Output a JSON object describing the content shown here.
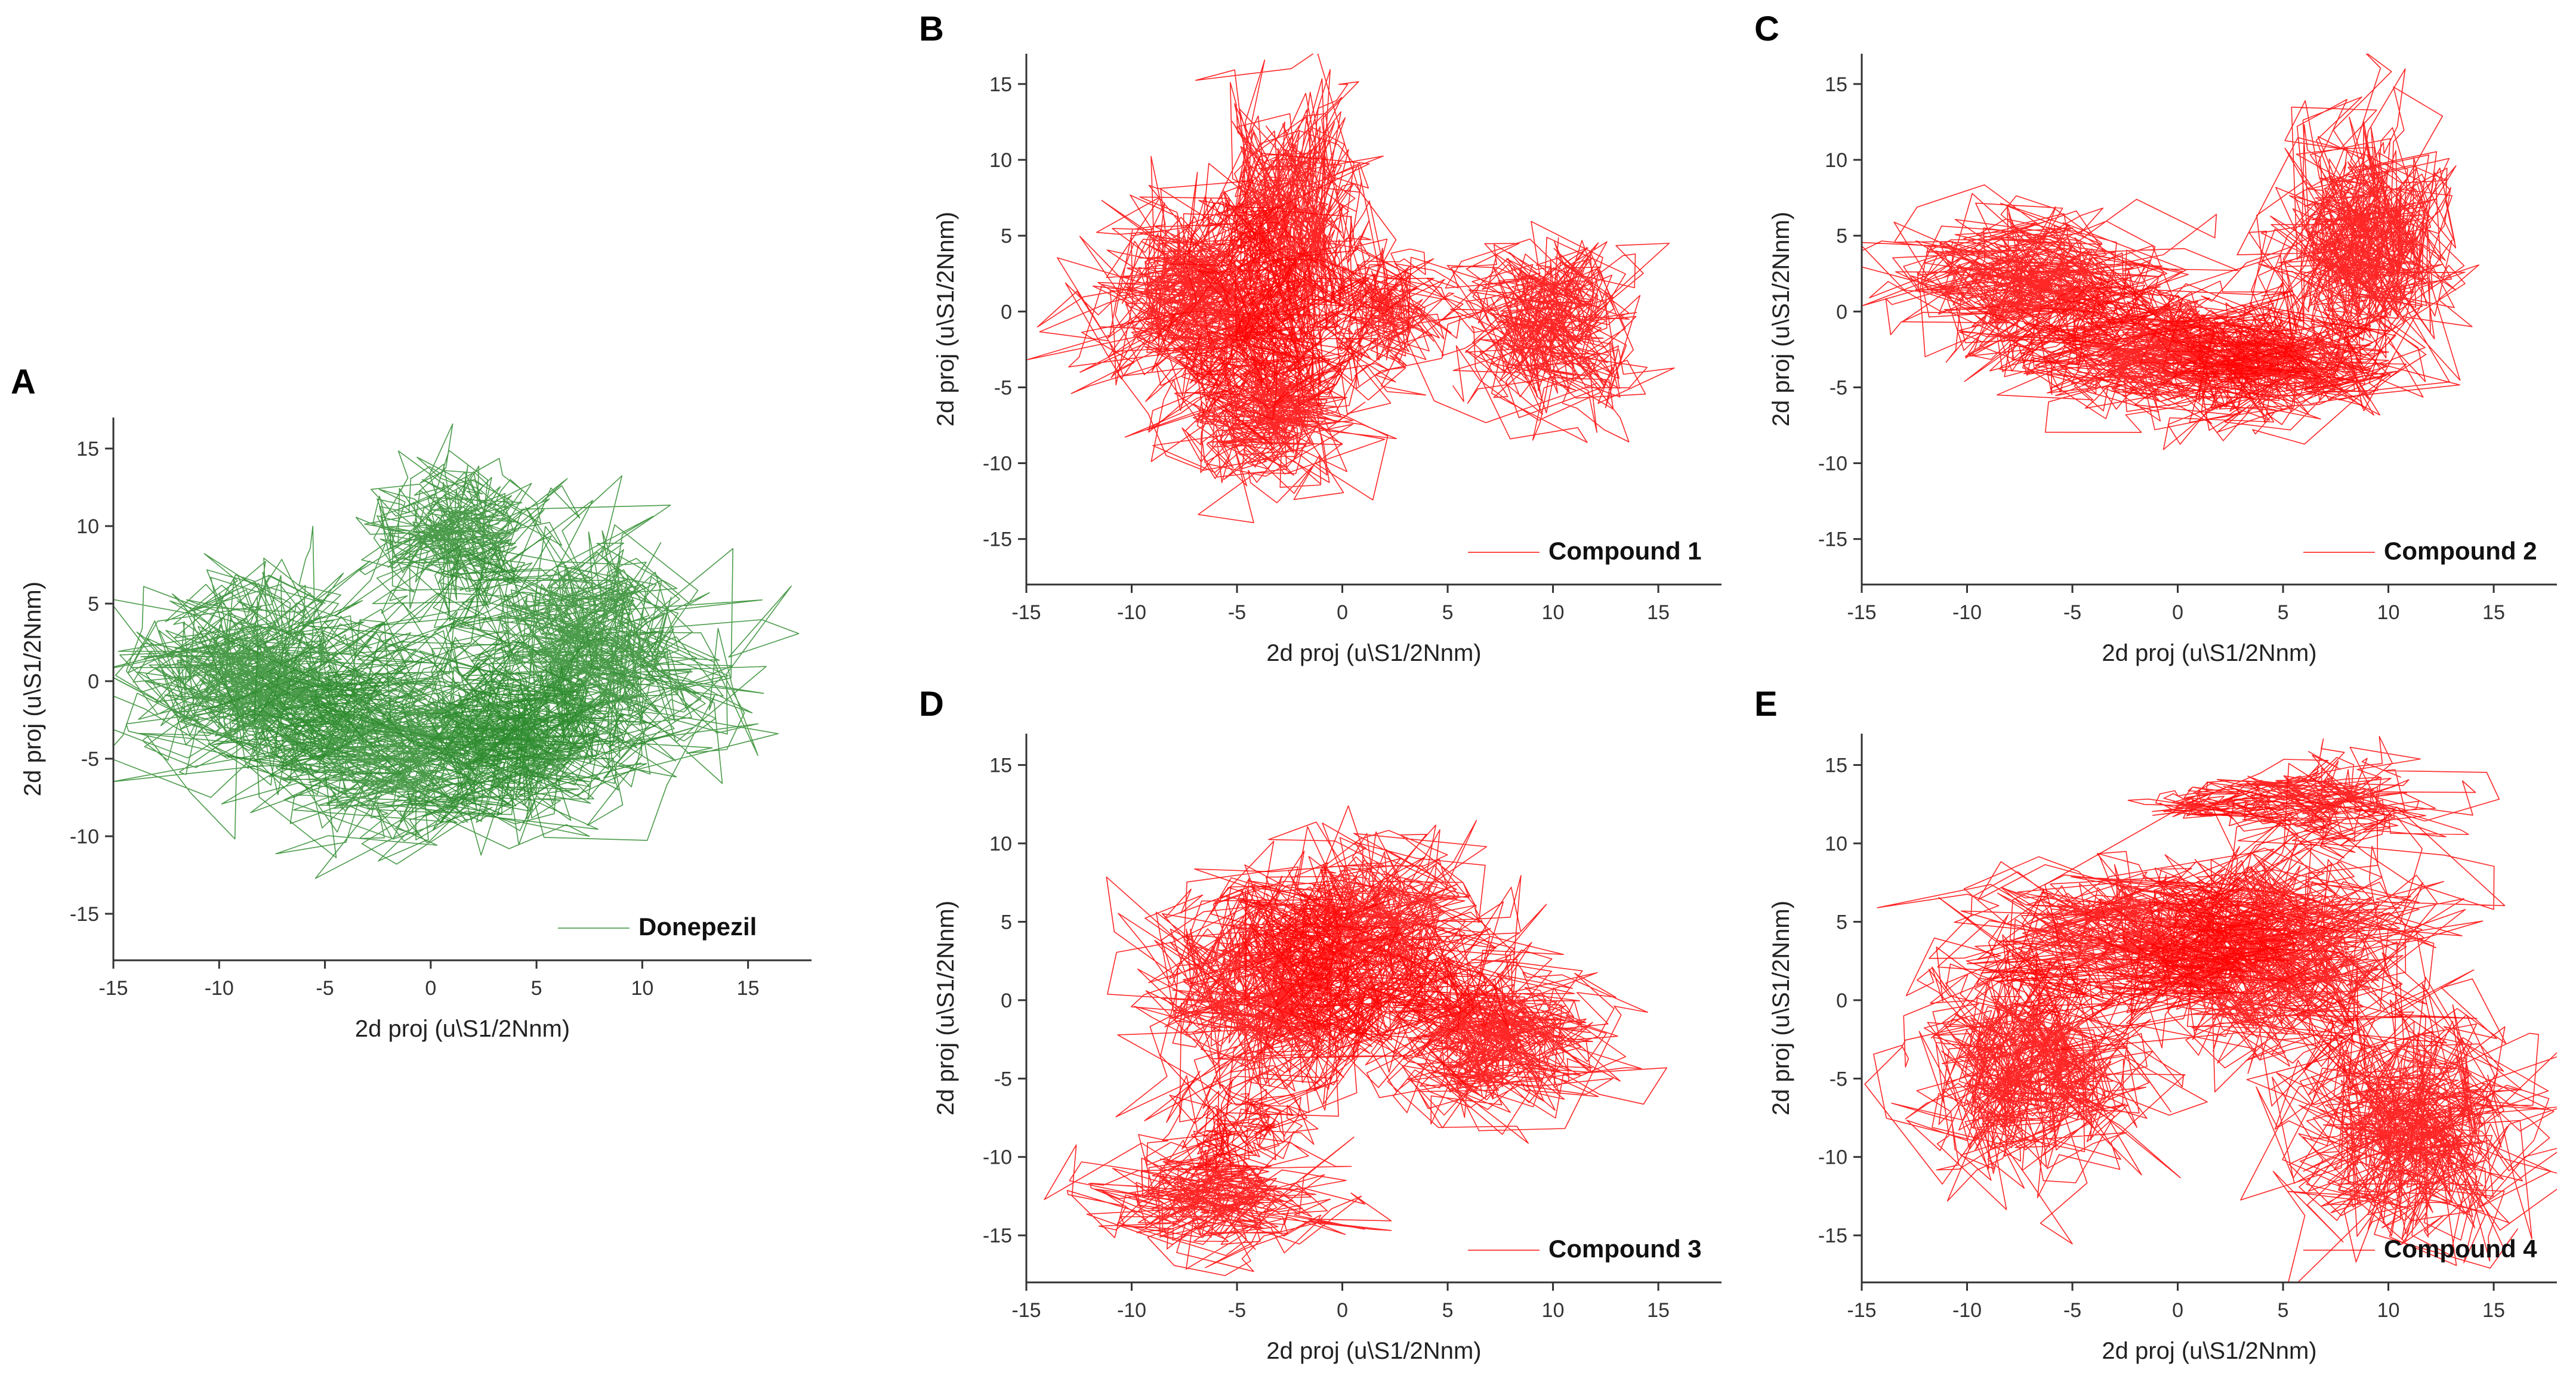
{
  "colors": {
    "donepezil": "#2a8a2a",
    "compound": "#ff0000",
    "axis": "#333333"
  },
  "chart_data": [
    {
      "panel": "A",
      "type": "line",
      "series_name": "Donepezil",
      "color": "#2a8a2a",
      "xlabel": "2d proj (u\\S1/2Nnm)",
      "ylabel": "2d proj (u\\S1/2Nnm)",
      "xlim": [
        -15,
        18
      ],
      "ylim": [
        -18,
        17
      ],
      "xticks": [
        -15,
        -10,
        -5,
        0,
        5,
        10,
        15
      ],
      "yticks": [
        -15,
        -10,
        -5,
        0,
        5,
        10,
        15
      ],
      "tick_labels_x": [
        "-15",
        "-10",
        "-5",
        "0",
        "5",
        "10",
        "15"
      ],
      "tick_labels_y": [
        "-15",
        "-10",
        "-5",
        "0",
        "5",
        "10",
        "15"
      ],
      "clusters": [
        {
          "cx": -8,
          "cy": 0.5,
          "rx": 4.5,
          "ry": 4.5,
          "n": 700
        },
        {
          "cx": -1,
          "cy": -4,
          "rx": 5,
          "ry": 4,
          "n": 700
        },
        {
          "cx": 1.5,
          "cy": 9.5,
          "rx": 2.8,
          "ry": 3.2,
          "n": 400
        },
        {
          "cx": 7.5,
          "cy": 1.5,
          "rx": 4.5,
          "ry": 5,
          "n": 700
        },
        {
          "cx": 4,
          "cy": -4,
          "rx": 3.5,
          "ry": 3,
          "n": 400
        }
      ]
    },
    {
      "panel": "B",
      "type": "line",
      "series_name": "Compound 1",
      "color": "#ff0000",
      "xlabel": "2d proj (u\\S1/2Nnm)",
      "ylabel": "2d proj (u\\S1/2Nnm)",
      "xlim": [
        -15,
        18
      ],
      "ylim": [
        -18,
        17
      ],
      "xticks": [
        -15,
        -10,
        -5,
        0,
        5,
        10,
        15
      ],
      "yticks": [
        -15,
        -10,
        -5,
        0,
        5,
        10,
        15
      ],
      "tick_labels_x": [
        "-15",
        "-10",
        "-5",
        "0",
        "5",
        "10",
        "15"
      ],
      "tick_labels_y": [
        "-15",
        "-10",
        "-5",
        "0",
        "5",
        "10",
        "15"
      ],
      "clusters": [
        {
          "cx": -6.5,
          "cy": 1,
          "rx": 4,
          "ry": 4.5,
          "n": 700
        },
        {
          "cx": -2.5,
          "cy": 5,
          "rx": 2.5,
          "ry": 6,
          "n": 600
        },
        {
          "cx": -4,
          "cy": -6,
          "rx": 3.2,
          "ry": 3.5,
          "n": 500
        },
        {
          "cx": 2,
          "cy": 0,
          "rx": 2.2,
          "ry": 2.8,
          "n": 300
        },
        {
          "cx": 9.5,
          "cy": -1,
          "rx": 3,
          "ry": 4,
          "n": 500
        }
      ]
    },
    {
      "panel": "C",
      "type": "line",
      "series_name": "Compound 2",
      "color": "#ff0000",
      "xlabel": "2d proj (u\\S1/2Nnm)",
      "ylabel": "2d proj (u\\S1/2Nnm)",
      "xlim": [
        -15,
        18
      ],
      "ylim": [
        -18,
        17
      ],
      "xticks": [
        -15,
        -10,
        -5,
        0,
        5,
        10,
        15
      ],
      "yticks": [
        -15,
        -10,
        -5,
        0,
        5,
        10,
        15
      ],
      "tick_labels_x": [
        "-15",
        "-10",
        "-5",
        "0",
        "5",
        "10",
        "15"
      ],
      "tick_labels_y": [
        "-15",
        "-10",
        "-5",
        "0",
        "5",
        "10",
        "15"
      ],
      "clusters": [
        {
          "cx": -7,
          "cy": 1.5,
          "rx": 4.5,
          "ry": 3.5,
          "n": 600
        },
        {
          "cx": -1,
          "cy": -2.5,
          "rx": 4.5,
          "ry": 3,
          "n": 600
        },
        {
          "cx": 5,
          "cy": -3.5,
          "rx": 3.5,
          "ry": 2.8,
          "n": 500
        },
        {
          "cx": 9,
          "cy": 4,
          "rx": 3,
          "ry": 5.5,
          "n": 700
        }
      ]
    },
    {
      "panel": "D",
      "type": "line",
      "series_name": "Compound 3",
      "color": "#ff0000",
      "xlabel": "2d proj (u\\S1/2Nnm)",
      "ylabel": "2d proj (u\\S1/2Nnm)",
      "xlim": [
        -15,
        18
      ],
      "ylim": [
        -18,
        17
      ],
      "xticks": [
        -15,
        -10,
        -5,
        0,
        5,
        10,
        15
      ],
      "yticks": [
        -15,
        -10,
        -5,
        0,
        5,
        10,
        15
      ],
      "tick_labels_x": [
        "-15",
        "-10",
        "-5",
        "0",
        "5",
        "10",
        "15"
      ],
      "tick_labels_y": [
        "-15",
        "-10",
        "-5",
        "0",
        "5",
        "10",
        "15"
      ],
      "clusters": [
        {
          "cx": -3.5,
          "cy": 0,
          "rx": 4,
          "ry": 5,
          "n": 700
        },
        {
          "cx": 1,
          "cy": 3.5,
          "rx": 4,
          "ry": 4.5,
          "n": 700
        },
        {
          "cx": 7.5,
          "cy": -2,
          "rx": 3.5,
          "ry": 3.5,
          "n": 600
        },
        {
          "cx": -6,
          "cy": -12.5,
          "rx": 3.8,
          "ry": 2.8,
          "n": 400
        },
        {
          "cx": -5,
          "cy": -8,
          "rx": 2,
          "ry": 2,
          "n": 150
        }
      ]
    },
    {
      "panel": "E",
      "type": "line",
      "series_name": "Compound 4",
      "color": "#ff0000",
      "xlabel": "2d proj (u\\S1/2Nnm)",
      "ylabel": "2d proj (u\\S1/2Nnm)",
      "xlim": [
        -15,
        18
      ],
      "ylim": [
        -18,
        17
      ],
      "xticks": [
        -15,
        -10,
        -5,
        0,
        5,
        10,
        15
      ],
      "yticks": [
        -15,
        -10,
        -5,
        0,
        5,
        10,
        15
      ],
      "tick_labels_x": [
        "-15",
        "-10",
        "-5",
        "0",
        "5",
        "10",
        "15"
      ],
      "tick_labels_y": [
        "-15",
        "-10",
        "-5",
        "0",
        "5",
        "10",
        "15"
      ],
      "clusters": [
        {
          "cx": -7.5,
          "cy": -4,
          "rx": 3.5,
          "ry": 5,
          "n": 700
        },
        {
          "cx": -2,
          "cy": 4,
          "rx": 5,
          "ry": 3,
          "n": 600
        },
        {
          "cx": 5,
          "cy": 3,
          "rx": 5,
          "ry": 4.5,
          "n": 800
        },
        {
          "cx": 11,
          "cy": -8,
          "rx": 4,
          "ry": 5,
          "n": 700
        },
        {
          "cx": 7,
          "cy": 13,
          "rx": 3.5,
          "ry": 1.8,
          "n": 300
        },
        {
          "cx": 1.5,
          "cy": 12.5,
          "rx": 2,
          "ry": 0.8,
          "n": 120
        }
      ]
    }
  ]
}
